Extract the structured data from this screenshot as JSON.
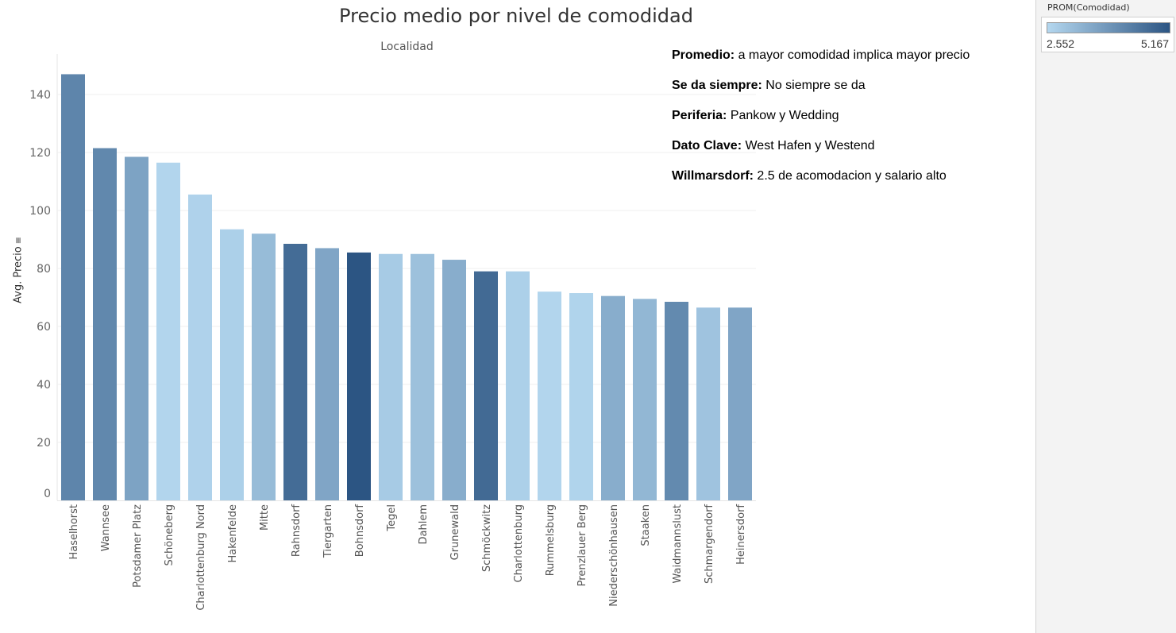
{
  "chart_data": {
    "type": "bar",
    "title": "Precio medio por nivel de comodidad",
    "column_header": "Localidad",
    "ylabel": "Avg. Precio",
    "ylim": [
      0,
      150
    ],
    "yticks": [
      0,
      20,
      40,
      60,
      80,
      100,
      120,
      140
    ],
    "grid": true,
    "categories": [
      "Haselhorst",
      "Wannsee",
      "Potsdamer Platz",
      "Schöneberg",
      "Charlottenburg Nord",
      "Hakenfelde",
      "Mitte",
      "Rahnsdorf",
      "Tiergarten",
      "Bohnsdorf",
      "Tegel",
      "Dahlem",
      "Grunewald",
      "Schmöckwitz",
      "Charlottenburg",
      "Rummelsburg",
      "Prenzlauer Berg",
      "Niederschönhausen",
      "Staaken",
      "Waidmannslust",
      "Schmargendorf",
      "Heinersdorf"
    ],
    "values": [
      147,
      121.5,
      118.5,
      116.5,
      105.5,
      93.5,
      92,
      88.5,
      87,
      85.5,
      85,
      85,
      83,
      79,
      79,
      72,
      71.5,
      70.5,
      69.5,
      68.5,
      66.5,
      66.5
    ],
    "color_values": [
      4.2,
      4.15,
      3.6,
      2.6,
      2.65,
      2.7,
      3.1,
      4.7,
      3.55,
      5.167,
      2.8,
      3.0,
      3.4,
      4.75,
      2.7,
      2.6,
      2.62,
      3.4,
      3.2,
      4.1,
      2.95,
      3.55
    ],
    "color_scale": {
      "field": "PROM(Comodidad)",
      "min": 2.552,
      "max": 5.167,
      "min_label": "2.552",
      "max_label": "5.167",
      "min_color": "#b4d7ef",
      "max_color": "#2c5583"
    }
  },
  "annotations": [
    {
      "label": "Promedio:",
      "text": " a mayor comodidad implica mayor precio"
    },
    {
      "label": "Se da siempre:",
      "text": " No siempre se da"
    },
    {
      "label": "Periferia:",
      "text": " Pankow y Wedding"
    },
    {
      "label": "Dato Clave:",
      "text": " West Hafen y Westend"
    },
    {
      "label": "Willmarsdorf:",
      "text": " 2.5 de acomodacion y salario alto"
    }
  ],
  "icons": {
    "sort_icon": "sort-descending-icon"
  }
}
